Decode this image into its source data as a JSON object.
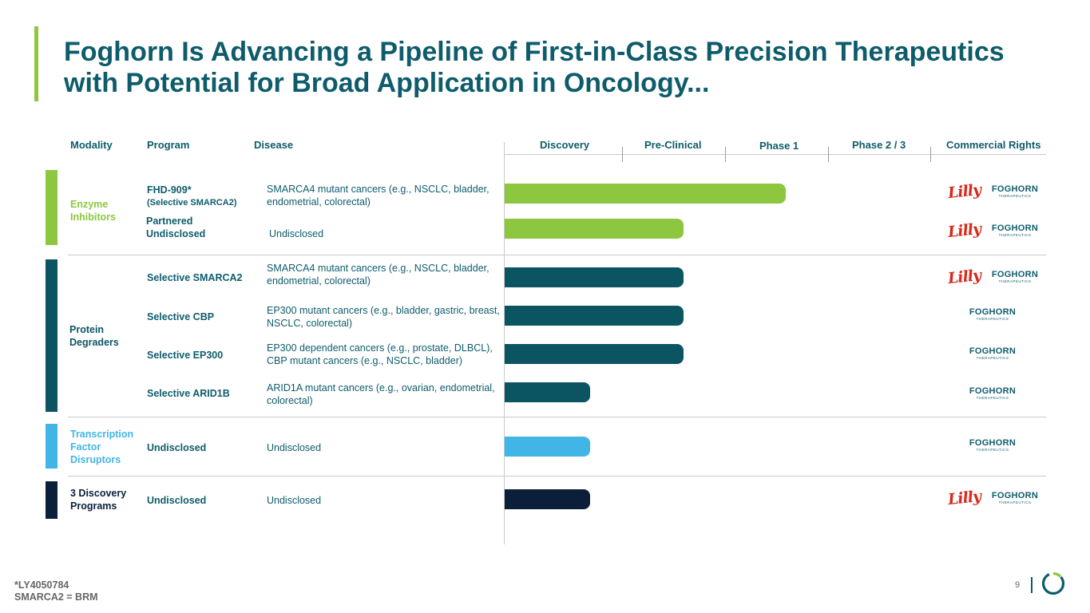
{
  "title": "Foghorn Is Advancing a Pipeline of First-in-Class Precision Therapeutics with Potential for Broad Application in Oncology...",
  "headers": {
    "modality": "Modality",
    "program": "Program",
    "disease": "Disease",
    "discovery": "Discovery",
    "preclinical": "Pre-Clinical",
    "phase1": "Phase 1",
    "phase23": "Phase 2 / 3",
    "rights": "Commercial Rights"
  },
  "modalities": [
    {
      "label": "Enzyme Inhibitors",
      "color": "#8dc63f"
    },
    {
      "label": "Protein Degraders",
      "color": "#0b5563"
    },
    {
      "label": "Transcription Factor Disruptors",
      "color": "#41b6e6"
    },
    {
      "label": "3 Discovery Programs",
      "color": "#0c1f3a"
    }
  ],
  "stage_scale": [
    "Discovery",
    "Pre-Clinical",
    "Phase 1",
    "Phase 2 / 3"
  ],
  "rows": [
    {
      "program": "FHD-909*",
      "program_sub": "(Selective SMARCA2)",
      "disease": "SMARCA4 mutant cancers (e.g., NSCLC, bladder, endometrial, colorectal)",
      "progress": 0.66,
      "rights": [
        "Lilly",
        "Foghorn"
      ]
    },
    {
      "program": "Partnered Undisclosed",
      "disease": "Undisclosed",
      "progress": 0.42,
      "rights": [
        "Lilly",
        "Foghorn"
      ]
    },
    {
      "program": "Selective SMARCA2",
      "disease": "SMARCA4 mutant cancers (e.g., NSCLC, bladder, endometrial, colorectal)",
      "progress": 0.42,
      "rights": [
        "Lilly",
        "Foghorn"
      ]
    },
    {
      "program": "Selective CBP",
      "disease": "EP300 mutant cancers (e.g., bladder, gastric, breast, NSCLC, colorectal)",
      "progress": 0.42,
      "rights": [
        "Foghorn"
      ]
    },
    {
      "program": "Selective EP300",
      "disease": "EP300 dependent cancers (e.g., prostate, DLBCL), CBP mutant cancers (e.g., NSCLC, bladder)",
      "progress": 0.42,
      "rights": [
        "Foghorn"
      ]
    },
    {
      "program": "Selective ARID1B",
      "disease": "ARID1A mutant cancers (e.g., ovarian, endometrial, colorectal)",
      "progress": 0.2,
      "rights": [
        "Foghorn"
      ]
    },
    {
      "program": "Undisclosed",
      "disease": "Undisclosed",
      "progress": 0.2,
      "rights": [
        "Foghorn"
      ]
    },
    {
      "program": "Undisclosed",
      "disease": "Undisclosed",
      "progress": 0.2,
      "rights": [
        "Lilly",
        "Foghorn"
      ]
    }
  ],
  "logos": {
    "lilly": "Lilly",
    "foghorn": "FOGHORN",
    "foghorn_sub": "THERAPEUTICS"
  },
  "footnote": {
    "line1": "*LY4050784",
    "line2": "SMARCA2 = BRM"
  },
  "page_number": "9"
}
